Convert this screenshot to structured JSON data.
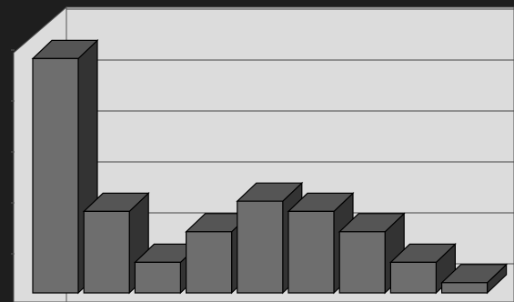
{
  "chart_data": {
    "type": "bar3d",
    "categories": [
      null,
      null,
      null,
      null,
      null,
      null,
      null,
      null,
      null
    ],
    "values": [
      4.6,
      1.6,
      0.6,
      1.2,
      1.8,
      1.6,
      1.2,
      0.6,
      0.2
    ],
    "color": "#6e6e6e",
    "ylim": [
      0,
      5
    ],
    "yticks": [
      0,
      1,
      2,
      3,
      4,
      5
    ],
    "grid": true
  }
}
